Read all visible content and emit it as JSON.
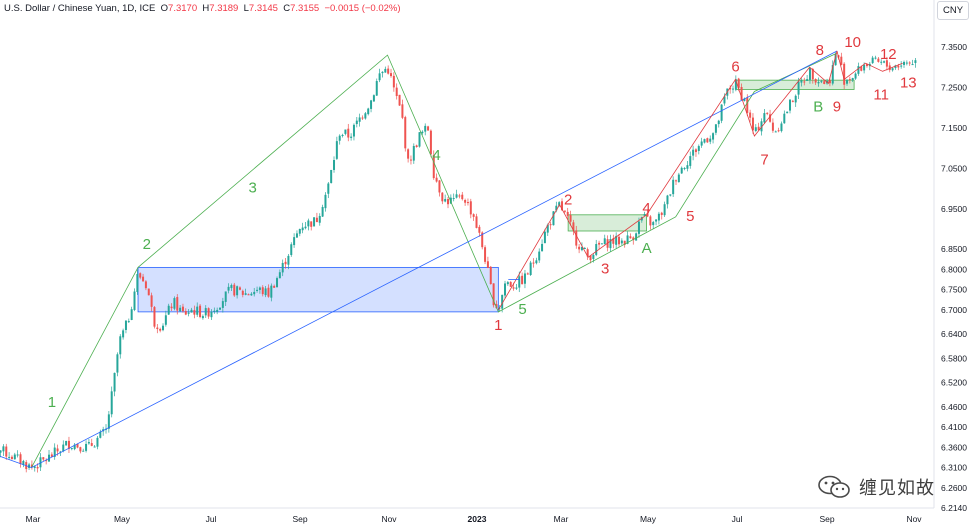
{
  "header": {
    "symbol": "U.S. Dollar / Chinese Yuan, 1D, ICE",
    "open_label": "O",
    "open": "7.3170",
    "high_label": "H",
    "high": "7.3189",
    "low_label": "L",
    "low": "7.3145",
    "close_label": "C",
    "close": "7.3155",
    "change": "−0.0015 (−0.02%)"
  },
  "currency_button": "CNY",
  "watermark": {
    "text": "缠见如故",
    "icon": "wechat-icon"
  },
  "colors": {
    "up": "#26a69a",
    "down": "#ef5350",
    "green_wave": "#4caf50",
    "red_wave": "#e0393e",
    "blue": "#2962ff"
  },
  "chart_data": {
    "type": "candlestick",
    "title": "U.S. Dollar / Chinese Yuan, 1D, ICE",
    "x_ticks": [
      "Mar",
      "May",
      "Jul",
      "Sep",
      "Nov",
      "2023",
      "Mar",
      "May",
      "Jul",
      "Sep",
      "Nov"
    ],
    "x_tick_dates": [
      "2022-03-01",
      "2022-05-01",
      "2022-07-01",
      "2022-09-01",
      "2022-11-01",
      "2023-01-01",
      "2023-03-01",
      "2023-05-01",
      "2023-07-01",
      "2023-09-01",
      "2023-11-01"
    ],
    "y_ticks": [
      7.35,
      7.25,
      7.15,
      7.05,
      6.95,
      6.85,
      6.8,
      6.75,
      6.7,
      6.64,
      6.58,
      6.52,
      6.46,
      6.41,
      6.36,
      6.31,
      6.26,
      6.21
    ],
    "y_tick_labels": [
      "7.3500",
      "7.2500",
      "7.1500",
      "7.0500",
      "6.9500",
      "6.8500",
      "6.8000",
      "6.7500",
      "6.7000",
      "6.6400",
      "6.5800",
      "6.5200",
      "6.4600",
      "6.4100",
      "6.3600",
      "6.3100",
      "6.2600",
      "6.2140"
    ],
    "ylim": [
      6.214,
      7.37
    ],
    "price_path": [
      {
        "date": "2022-01-28",
        "price": 6.37
      },
      {
        "date": "2022-02-14",
        "price": 6.34
      },
      {
        "date": "2022-02-28",
        "price": 6.31
      },
      {
        "date": "2022-03-10",
        "price": 6.33
      },
      {
        "date": "2022-03-25",
        "price": 6.37
      },
      {
        "date": "2022-04-08",
        "price": 6.36
      },
      {
        "date": "2022-04-20",
        "price": 6.4
      },
      {
        "date": "2022-04-25",
        "price": 6.51
      },
      {
        "date": "2022-04-29",
        "price": 6.62
      },
      {
        "date": "2022-05-05",
        "price": 6.67
      },
      {
        "date": "2022-05-12",
        "price": 6.79
      },
      {
        "date": "2022-05-18",
        "price": 6.76
      },
      {
        "date": "2022-05-23",
        "price": 6.67
      },
      {
        "date": "2022-05-28",
        "price": 6.66
      },
      {
        "date": "2022-06-05",
        "price": 6.72
      },
      {
        "date": "2022-06-12",
        "price": 6.69
      },
      {
        "date": "2022-06-18",
        "price": 6.7
      },
      {
        "date": "2022-06-27",
        "price": 6.69
      },
      {
        "date": "2022-07-05",
        "price": 6.71
      },
      {
        "date": "2022-07-15",
        "price": 6.75
      },
      {
        "date": "2022-07-25",
        "price": 6.74
      },
      {
        "date": "2022-08-03",
        "price": 6.75
      },
      {
        "date": "2022-08-10",
        "price": 6.74
      },
      {
        "date": "2022-08-19",
        "price": 6.8
      },
      {
        "date": "2022-08-25",
        "price": 6.85
      },
      {
        "date": "2022-09-02",
        "price": 6.91
      },
      {
        "date": "2022-09-12",
        "price": 6.92
      },
      {
        "date": "2022-09-20",
        "price": 7.0
      },
      {
        "date": "2022-09-28",
        "price": 7.14
      },
      {
        "date": "2022-10-05",
        "price": 7.13
      },
      {
        "date": "2022-10-13",
        "price": 7.18
      },
      {
        "date": "2022-10-20",
        "price": 7.22
      },
      {
        "date": "2022-10-25",
        "price": 7.28
      },
      {
        "date": "2022-10-31",
        "price": 7.3
      },
      {
        "date": "2022-11-04",
        "price": 7.25
      },
      {
        "date": "2022-11-10",
        "price": 7.18
      },
      {
        "date": "2022-11-14",
        "price": 7.06
      },
      {
        "date": "2022-11-22",
        "price": 7.13
      },
      {
        "date": "2022-11-28",
        "price": 7.15
      },
      {
        "date": "2022-12-02",
        "price": 7.04
      },
      {
        "date": "2022-12-09",
        "price": 6.97
      },
      {
        "date": "2022-12-16",
        "price": 6.97
      },
      {
        "date": "2022-12-23",
        "price": 6.98
      },
      {
        "date": "2022-12-30",
        "price": 6.93
      },
      {
        "date": "2023-01-06",
        "price": 6.84
      },
      {
        "date": "2023-01-12",
        "price": 6.73
      },
      {
        "date": "2023-01-16",
        "price": 6.7
      },
      {
        "date": "2023-01-21",
        "price": 6.77
      },
      {
        "date": "2023-01-27",
        "price": 6.76
      },
      {
        "date": "2023-02-04",
        "price": 6.78
      },
      {
        "date": "2023-02-11",
        "price": 6.83
      },
      {
        "date": "2023-02-20",
        "price": 6.91
      },
      {
        "date": "2023-02-28",
        "price": 6.96
      },
      {
        "date": "2023-03-06",
        "price": 6.92
      },
      {
        "date": "2023-03-12",
        "price": 6.87
      },
      {
        "date": "2023-03-20",
        "price": 6.83
      },
      {
        "date": "2023-03-28",
        "price": 6.86
      },
      {
        "date": "2023-04-05",
        "price": 6.87
      },
      {
        "date": "2023-04-13",
        "price": 6.87
      },
      {
        "date": "2023-04-20",
        "price": 6.88
      },
      {
        "date": "2023-04-27",
        "price": 6.93
      },
      {
        "date": "2023-05-05",
        "price": 6.91
      },
      {
        "date": "2023-05-12",
        "price": 6.95
      },
      {
        "date": "2023-05-20",
        "price": 7.03
      },
      {
        "date": "2023-05-30",
        "price": 7.08
      },
      {
        "date": "2023-06-08",
        "price": 7.12
      },
      {
        "date": "2023-06-16",
        "price": 7.14
      },
      {
        "date": "2023-06-24",
        "price": 7.24
      },
      {
        "date": "2023-06-30",
        "price": 7.26
      },
      {
        "date": "2023-07-06",
        "price": 7.22
      },
      {
        "date": "2023-07-13",
        "price": 7.13
      },
      {
        "date": "2023-07-20",
        "price": 7.19
      },
      {
        "date": "2023-07-27",
        "price": 7.14
      },
      {
        "date": "2023-08-04",
        "price": 7.19
      },
      {
        "date": "2023-08-12",
        "price": 7.25
      },
      {
        "date": "2023-08-20",
        "price": 7.29
      },
      {
        "date": "2023-08-26",
        "price": 7.27
      },
      {
        "date": "2023-09-02",
        "price": 7.26
      },
      {
        "date": "2023-09-08",
        "price": 7.34
      },
      {
        "date": "2023-09-13",
        "price": 7.27
      },
      {
        "date": "2023-09-20",
        "price": 7.28
      },
      {
        "date": "2023-09-28",
        "price": 7.31
      },
      {
        "date": "2023-10-08",
        "price": 7.31
      },
      {
        "date": "2023-10-16",
        "price": 7.3
      },
      {
        "date": "2023-10-24",
        "price": 7.31
      },
      {
        "date": "2023-11-03",
        "price": 7.3155
      }
    ],
    "zones": [
      {
        "color": "blue",
        "from": "2022-05-12",
        "to": "2023-01-16",
        "top": 6.805,
        "bottom": 6.695
      },
      {
        "color": "green",
        "from": "2023-03-06",
        "to": "2023-04-30",
        "top": 6.935,
        "bottom": 6.895
      },
      {
        "color": "green",
        "from": "2023-06-30",
        "to": "2023-09-20",
        "top": 7.268,
        "bottom": 7.245
      }
    ],
    "lines": [
      {
        "color": "green",
        "points": [
          [
            "2022-02-28",
            6.31
          ],
          [
            "2022-05-12",
            6.805
          ],
          [
            "2022-10-31",
            7.33
          ],
          [
            "2023-01-16",
            6.695
          ],
          [
            "2023-05-20",
            6.93
          ],
          [
            "2023-07-13",
            7.24
          ],
          [
            "2023-09-08",
            7.335
          ]
        ]
      },
      {
        "color": "blue",
        "points": [
          [
            "2022-01-28",
            6.35
          ],
          [
            "2022-02-28",
            6.31
          ],
          [
            "2023-09-08",
            7.34
          ]
        ]
      },
      {
        "color": "red",
        "points": [
          [
            "2023-01-16",
            6.7
          ],
          [
            "2023-02-28",
            6.96
          ],
          [
            "2023-03-20",
            6.83
          ],
          [
            "2023-04-30",
            6.935
          ],
          [
            "2023-06-30",
            7.27
          ],
          [
            "2023-07-13",
            7.13
          ],
          [
            "2023-08-20",
            7.3
          ],
          [
            "2023-09-02",
            7.26
          ],
          [
            "2023-09-08",
            7.34
          ],
          [
            "2023-09-13",
            7.27
          ],
          [
            "2023-09-28",
            7.31
          ],
          [
            "2023-10-10",
            7.29
          ],
          [
            "2023-10-24",
            7.31
          ]
        ]
      },
      {
        "color": "blue",
        "points": [
          [
            "2023-01-23",
            6.775
          ],
          [
            "2023-01-31",
            6.775
          ]
        ]
      }
    ],
    "labels": [
      {
        "text": "1",
        "color": "green",
        "date": "2022-03-14",
        "price": 6.46
      },
      {
        "text": "2",
        "color": "green",
        "date": "2022-05-18",
        "price": 6.85
      },
      {
        "text": "3",
        "color": "green",
        "date": "2022-07-30",
        "price": 6.99
      },
      {
        "text": "4",
        "color": "green",
        "date": "2022-12-04",
        "price": 7.07
      },
      {
        "text": "5",
        "color": "green",
        "date": "2023-02-02",
        "price": 6.69
      },
      {
        "text": "A",
        "color": "green",
        "date": "2023-04-30",
        "price": 6.84
      },
      {
        "text": "B",
        "color": "green",
        "date": "2023-08-26",
        "price": 7.19
      },
      {
        "text": "1",
        "color": "red",
        "date": "2023-01-16",
        "price": 6.65
      },
      {
        "text": "2",
        "color": "red",
        "date": "2023-03-06",
        "price": 6.96
      },
      {
        "text": "3",
        "color": "red",
        "date": "2023-04-01",
        "price": 6.79
      },
      {
        "text": "4",
        "color": "red",
        "date": "2023-04-30",
        "price": 6.94
      },
      {
        "text": "5",
        "color": "red",
        "date": "2023-05-30",
        "price": 6.92
      },
      {
        "text": "6",
        "color": "red",
        "date": "2023-06-30",
        "price": 7.29
      },
      {
        "text": "7",
        "color": "red",
        "date": "2023-07-20",
        "price": 7.06
      },
      {
        "text": "8",
        "color": "red",
        "date": "2023-08-27",
        "price": 7.33
      },
      {
        "text": "9",
        "color": "red",
        "date": "2023-09-08",
        "price": 7.19
      },
      {
        "text": "10",
        "color": "red",
        "date": "2023-09-19",
        "price": 7.35
      },
      {
        "text": "11",
        "color": "red",
        "date": "2023-10-09",
        "price": 7.22
      },
      {
        "text": "12",
        "color": "red",
        "date": "2023-10-14",
        "price": 7.32
      },
      {
        "text": "13",
        "color": "red",
        "date": "2023-10-28",
        "price": 7.25
      }
    ],
    "grid": false,
    "xlabel": "",
    "ylabel": ""
  }
}
